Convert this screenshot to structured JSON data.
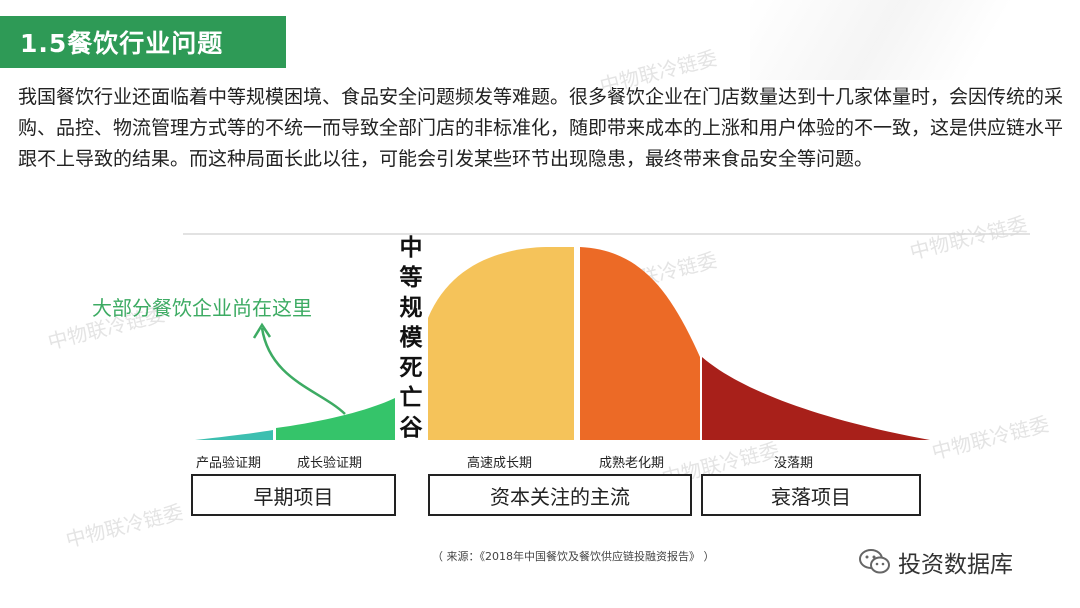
{
  "slide": {
    "title": "1.5餐饮行业问题",
    "intro": "我国餐饮行业还面临着中等规模困境、食品安全问题频发等难题。很多餐饮企业在门店数量达到十几家体量时，会因传统的采购、品控、物流管理方式等的不统一而导致全部门店的非标准化，随即带来成本的上涨和用户体验的不一致，这是供应链水平跟不上导致的结果。而这种局面长此以往，可能会引发某些环节出现隐患，最终带来食品安全等问题。"
  },
  "diagram": {
    "valley_label": "中等规模死亡谷",
    "annotation": "大部分餐饮企业尚在这里",
    "phases": [
      {
        "label": "产品验证期",
        "color": "#3dbfb0"
      },
      {
        "label": "成长验证期",
        "color": "#35c46a"
      },
      {
        "label": "高速成长期",
        "color": "#f5c35a"
      },
      {
        "label": "成熟老化期",
        "color": "#ec6a26"
      },
      {
        "label": "没落期",
        "color": "#a8201a"
      }
    ],
    "groups": [
      "早期项目",
      "资本关注的主流",
      "衰落项目"
    ]
  },
  "footer": {
    "source": "（ 来源：《2018年中国餐饮及餐饮供应链投融资报告》 ）",
    "brand": "投资数据库"
  },
  "watermark_text": "中物联冷链委",
  "colors": {
    "title_bg": "#2e9a56",
    "annotation": "#3dab63"
  }
}
